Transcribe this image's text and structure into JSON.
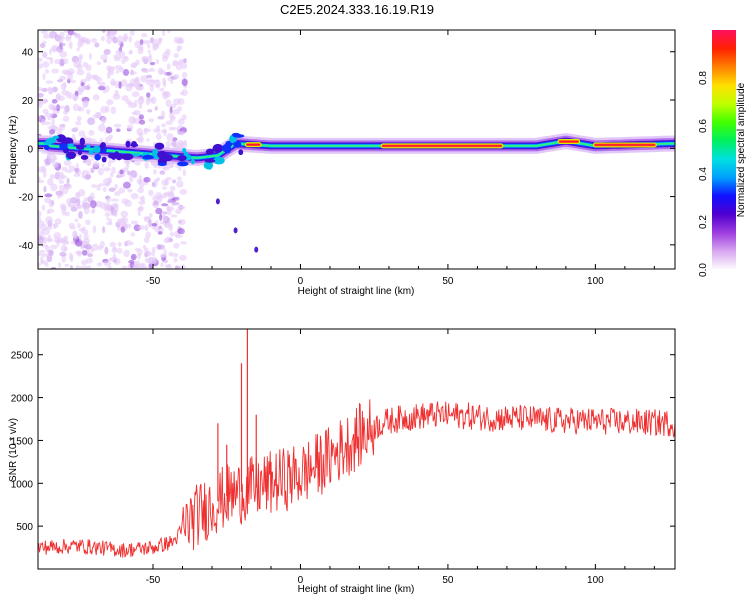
{
  "figure": {
    "title": "C2E5.2024.333.16.19.R19"
  },
  "chart_data": [
    {
      "type": "heatmap",
      "title": "C2E5.2024.333.16.19.R19",
      "xlabel": "Height of straight line (km)",
      "ylabel": "Frequency (Hz)",
      "xlim": [
        -89,
        127
      ],
      "ylim": [
        -50,
        49
      ],
      "x_ticks": [
        -50,
        0,
        50,
        100
      ],
      "y_ticks": [
        -40,
        -20,
        0,
        20,
        40
      ],
      "colorbar": {
        "label": "Normalized spectral amplitude",
        "range": [
          0,
          1
        ],
        "ticks": [
          "0.0",
          "0.2",
          "0.4",
          "0.6",
          "0.8"
        ],
        "colors": [
          "#ffffff",
          "#d8a8f0",
          "#a040e0",
          "#5000d0",
          "#1010ff",
          "#00a0ff",
          "#00e0e0",
          "#00f060",
          "#40ff00",
          "#c0ff00",
          "#ffe000",
          "#ff8000",
          "#ff2000",
          "#ff1060"
        ]
      },
      "ridge": {
        "description_values_hz": [
          {
            "x": -85,
            "y": 1
          },
          {
            "x": -75,
            "y": 0
          },
          {
            "x": -65,
            "y": -1
          },
          {
            "x": -55,
            "y": -2
          },
          {
            "x": -45,
            "y": -3
          },
          {
            "x": -35,
            "y": -4
          },
          {
            "x": -28,
            "y": -3
          },
          {
            "x": -22,
            "y": 2
          },
          {
            "x": -10,
            "y": 1
          },
          {
            "x": 0,
            "y": 1
          },
          {
            "x": 20,
            "y": 1
          },
          {
            "x": 50,
            "y": 1
          },
          {
            "x": 80,
            "y": 1
          },
          {
            "x": 90,
            "y": 3
          },
          {
            "x": 100,
            "y": 1
          },
          {
            "x": 127,
            "y": 2
          }
        ],
        "peak_segments_km": [
          [
            -18,
            -14
          ],
          [
            28,
            68
          ],
          [
            88,
            94
          ],
          [
            100,
            120
          ]
        ]
      },
      "scatter_note": "diffuse low-amplitude noise from -89 to -40 km across all frequencies"
    },
    {
      "type": "line",
      "xlabel": "Height of straight line (km)",
      "ylabel": "SNR (10 * v/v)",
      "xlim": [
        -89,
        127
      ],
      "ylim": [
        0,
        2800
      ],
      "x_ticks": [
        -50,
        0,
        50,
        100
      ],
      "y_ticks": [
        500,
        1000,
        1500,
        2000,
        2500
      ],
      "color": "#f03030",
      "series": [
        {
          "trend": [
            {
              "x": -89,
              "y": 250
            },
            {
              "x": -75,
              "y": 270
            },
            {
              "x": -60,
              "y": 220
            },
            {
              "x": -50,
              "y": 250
            },
            {
              "x": -43,
              "y": 320
            },
            {
              "x": -38,
              "y": 550
            },
            {
              "x": -30,
              "y": 750
            },
            {
              "x": -25,
              "y": 850
            },
            {
              "x": -20,
              "y": 900
            },
            {
              "x": -15,
              "y": 950
            },
            {
              "x": -10,
              "y": 1000
            },
            {
              "x": -5,
              "y": 1050
            },
            {
              "x": 0,
              "y": 1100
            },
            {
              "x": 5,
              "y": 1200
            },
            {
              "x": 10,
              "y": 1300
            },
            {
              "x": 15,
              "y": 1430
            },
            {
              "x": 20,
              "y": 1550
            },
            {
              "x": 25,
              "y": 1660
            },
            {
              "x": 30,
              "y": 1730
            },
            {
              "x": 35,
              "y": 1760
            },
            {
              "x": 45,
              "y": 1800
            },
            {
              "x": 55,
              "y": 1790
            },
            {
              "x": 65,
              "y": 1760
            },
            {
              "x": 75,
              "y": 1760
            },
            {
              "x": 85,
              "y": 1730
            },
            {
              "x": 95,
              "y": 1730
            },
            {
              "x": 105,
              "y": 1720
            },
            {
              "x": 115,
              "y": 1710
            },
            {
              "x": 127,
              "y": 1700
            }
          ],
          "spikes": [
            {
              "x": -28,
              "y": 1700
            },
            {
              "x": -25,
              "y": 1450
            },
            {
              "x": -20,
              "y": 2400
            },
            {
              "x": -18,
              "y": 2800
            },
            {
              "x": -15,
              "y": 1800
            },
            {
              "x": -10,
              "y": 1250
            }
          ]
        }
      ]
    }
  ]
}
